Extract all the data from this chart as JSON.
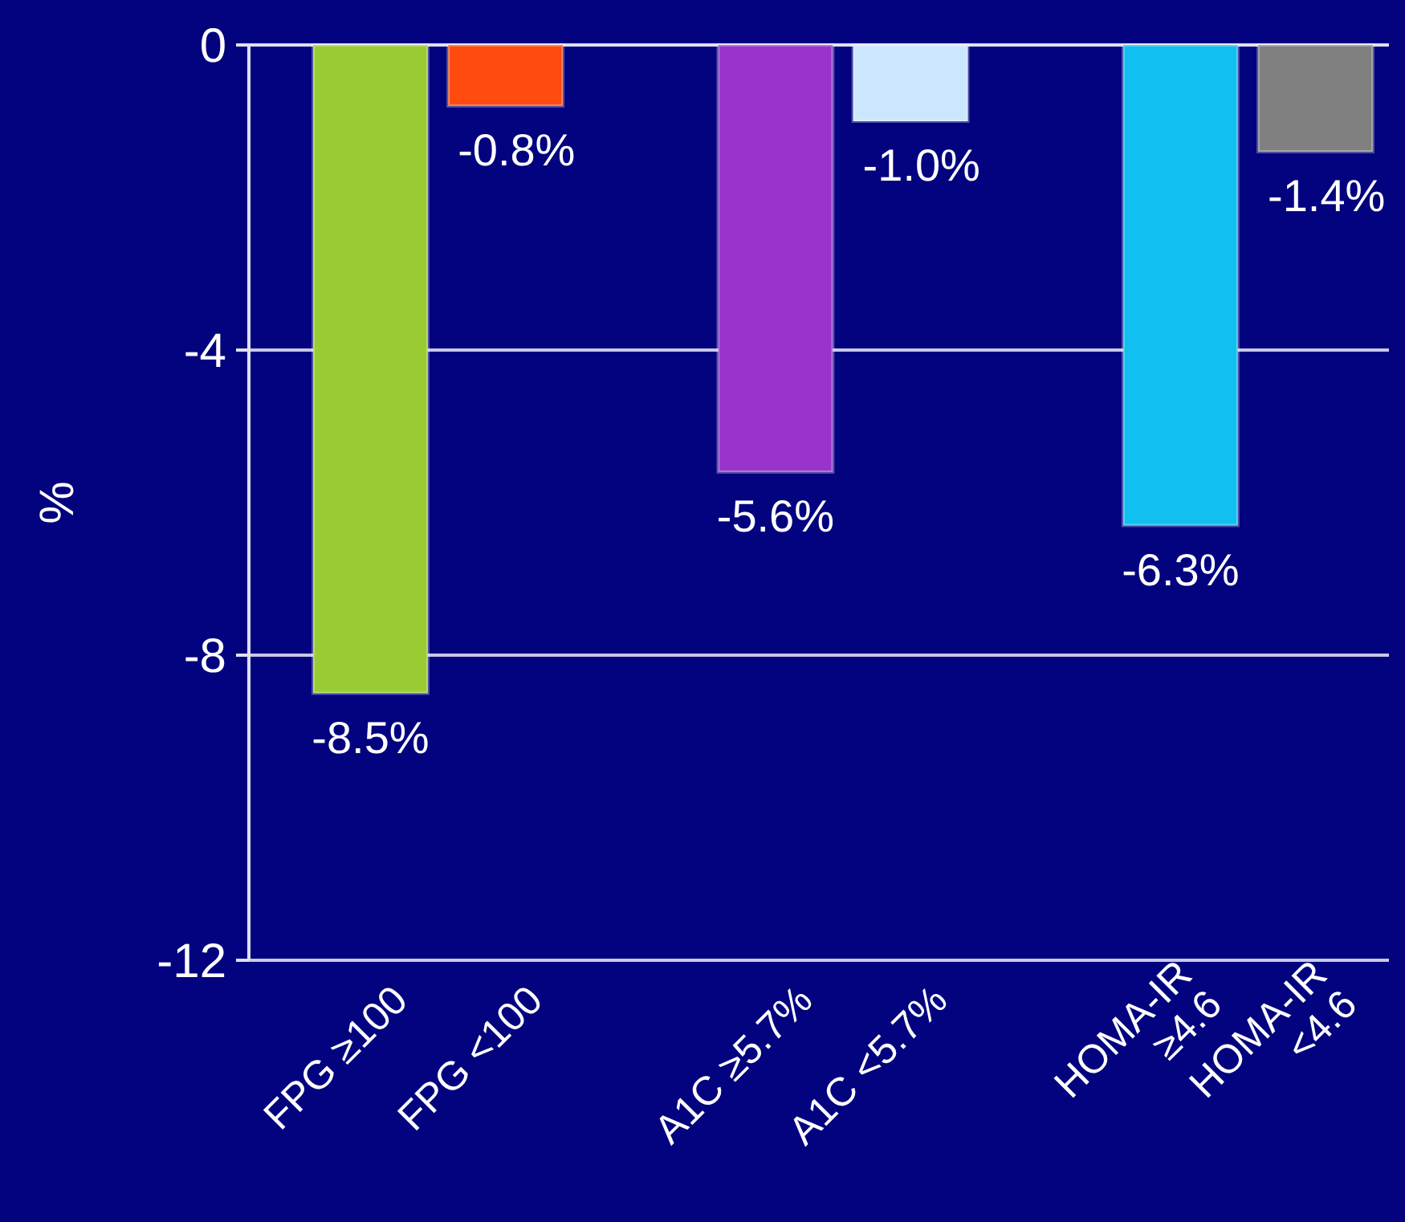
{
  "chart_data": {
    "type": "bar",
    "ylabel": "%",
    "categories": [
      "FPG ≥100",
      "FPG <100",
      null,
      "A1C ≥5.7%",
      "A1C <5.7%",
      null,
      "HOMA-IR ≥4.6",
      "HOMA-IR <4.6"
    ],
    "values": [
      -8.5,
      -0.8,
      null,
      -5.6,
      -1.0,
      null,
      -6.3,
      -1.4
    ],
    "colors": [
      "#99cc33",
      "#ff4a10",
      null,
      "#9933cc",
      "#cce6ff",
      null,
      "#11bff0",
      "#808080"
    ],
    "value_labels": [
      "-8.5%",
      "-0.8%",
      null,
      "-5.6%",
      "-1.0%",
      null,
      "-6.3%",
      "-1.4%"
    ],
    "ylim": [
      -12,
      0
    ],
    "yticks": [
      0,
      -4,
      -8,
      -12
    ],
    "grid": "y"
  }
}
